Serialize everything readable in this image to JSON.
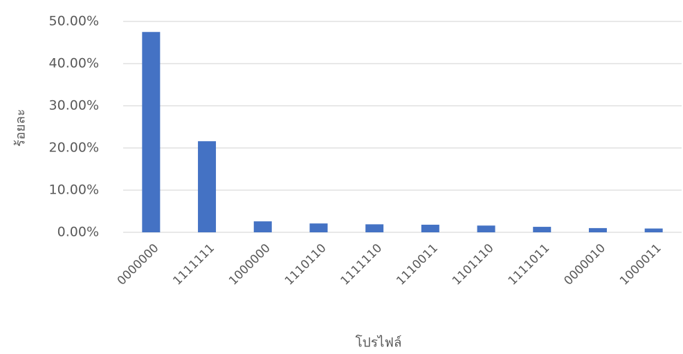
{
  "chart_data": {
    "type": "bar",
    "x_label": "โปรไฟล์",
    "y_label": "ร้อยละ",
    "categories": [
      "0000000",
      "1111111",
      "1000000",
      "1110110",
      "1111110",
      "1110011",
      "1101110",
      "1111011",
      "0000010",
      "1000011"
    ],
    "values": [
      47.5,
      21.6,
      2.6,
      2.1,
      1.9,
      1.8,
      1.6,
      1.3,
      1.0,
      0.9
    ],
    "color": "#4472c4",
    "ylim": [
      0,
      50
    ],
    "yticks": [
      {
        "value": 0,
        "label": "0.00%"
      },
      {
        "value": 10,
        "label": "10.00%"
      },
      {
        "value": 20,
        "label": "20.00%"
      },
      {
        "value": 30,
        "label": "30.00%"
      },
      {
        "value": 40,
        "label": "40.00%"
      },
      {
        "value": 50,
        "label": "50.00%"
      }
    ],
    "grid": true
  }
}
